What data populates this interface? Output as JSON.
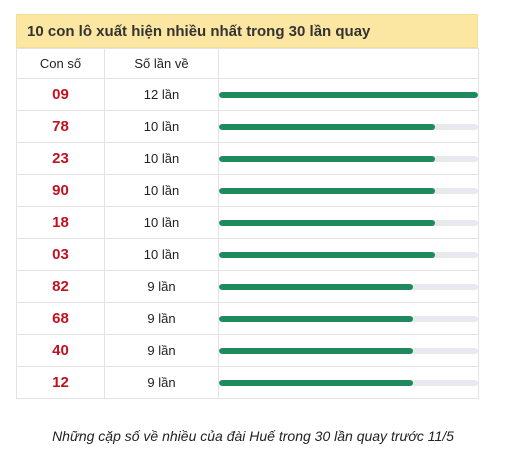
{
  "title": "10 con lô xuất hiện nhiều nhất trong 30 lần quay",
  "headers": {
    "number": "Con số",
    "count": "Số lần về",
    "bar": ""
  },
  "max_count": 12,
  "rows": [
    {
      "number": "09",
      "count_label": "12 lần",
      "count": 12
    },
    {
      "number": "78",
      "count_label": "10 lần",
      "count": 10
    },
    {
      "number": "23",
      "count_label": "10 lần",
      "count": 10
    },
    {
      "number": "90",
      "count_label": "10 lần",
      "count": 10
    },
    {
      "number": "18",
      "count_label": "10 lần",
      "count": 10
    },
    {
      "number": "03",
      "count_label": "10 lần",
      "count": 10
    },
    {
      "number": "82",
      "count_label": "9 lần",
      "count": 9
    },
    {
      "number": "68",
      "count_label": "9 lần",
      "count": 9
    },
    {
      "number": "40",
      "count_label": "9 lần",
      "count": 9
    },
    {
      "number": "12",
      "count_label": "9 lần",
      "count": 9
    }
  ],
  "caption": "Những cặp số về nhiều của đài Huế trong 30 lần quay trước 11/5",
  "colors": {
    "number": "#c1121f",
    "bar_fill": "#1f8a5b",
    "bar_track": "#e6e9ed",
    "title_bg": "#fbe7a1"
  }
}
